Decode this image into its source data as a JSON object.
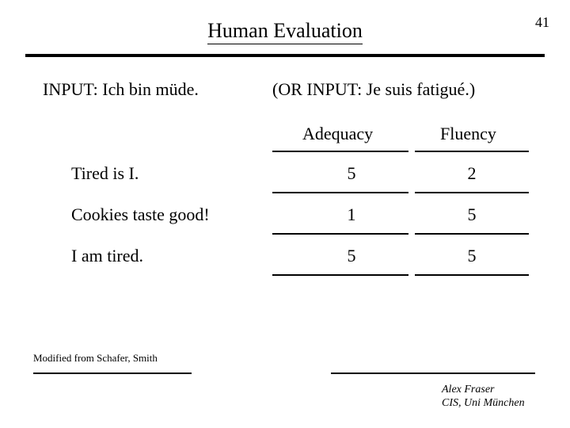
{
  "pageNumber": "41",
  "title": "Human Evaluation",
  "inputLeft": "INPUT: Ich bin müde.",
  "inputRight": "(OR INPUT: Je suis fatigué.)",
  "columns": {
    "adequacy": "Adequacy",
    "fluency": "Fluency"
  },
  "rows": [
    {
      "label": "Tired is I.",
      "adequacy": "5",
      "fluency": "2"
    },
    {
      "label": "Cookies taste good!",
      "adequacy": "1",
      "fluency": "5"
    },
    {
      "label": "I am tired.",
      "adequacy": "5",
      "fluency": "5"
    }
  ],
  "modified": "Modified from Schafer, Smith",
  "author": {
    "line1": "Alex Fraser",
    "line2": "CIS, Uni München"
  }
}
